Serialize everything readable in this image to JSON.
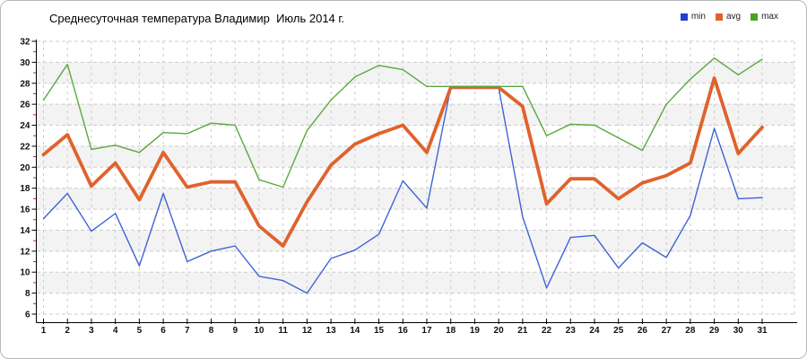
{
  "chart_data": {
    "type": "line",
    "title": "Среднесуточная температура Владимир  Июль 2014 г.",
    "xlabel": "",
    "ylabel": "",
    "x": [
      1,
      2,
      3,
      4,
      5,
      6,
      7,
      8,
      9,
      10,
      11,
      12,
      13,
      14,
      15,
      16,
      17,
      18,
      19,
      20,
      21,
      22,
      23,
      24,
      25,
      26,
      27,
      28,
      29,
      30,
      31
    ],
    "series": [
      {
        "name": "min",
        "color": "#3f63d6",
        "swatch_color": "#2040cf",
        "line_width": 1.4,
        "values": [
          15.1,
          17.5,
          13.9,
          15.6,
          10.6,
          17.5,
          11.0,
          12.0,
          12.5,
          9.6,
          9.2,
          8.0,
          11.3,
          12.1,
          13.6,
          18.7,
          16.1,
          27.6,
          27.6,
          27.6,
          15.3,
          8.5,
          13.3,
          13.5,
          10.4,
          12.8,
          11.4,
          15.4,
          23.7,
          17.0,
          17.1
        ]
      },
      {
        "name": "avg",
        "color": "#e0622d",
        "swatch_color": "#e0622d",
        "line_width": 3.8,
        "values": [
          21.2,
          23.1,
          18.2,
          20.4,
          16.9,
          21.4,
          18.1,
          18.6,
          18.6,
          14.4,
          12.5,
          16.7,
          20.2,
          22.2,
          23.2,
          24.0,
          21.4,
          27.6,
          27.6,
          27.6,
          25.8,
          16.5,
          18.9,
          18.9,
          17.0,
          18.5,
          19.2,
          20.4,
          28.5,
          21.3,
          23.8
        ]
      },
      {
        "name": "max",
        "color": "#5aa83e",
        "swatch_color": "#49a325",
        "line_width": 1.4,
        "values": [
          26.4,
          29.8,
          21.7,
          22.1,
          21.4,
          23.3,
          23.2,
          24.2,
          24.0,
          18.8,
          18.1,
          23.5,
          26.4,
          28.6,
          29.7,
          29.3,
          27.7,
          27.7,
          27.7,
          27.7,
          27.7,
          23.0,
          24.1,
          24.0,
          22.8,
          21.6,
          26.0,
          28.4,
          30.4,
          28.8,
          30.3
        ]
      }
    ],
    "ylim": [
      6,
      32
    ],
    "ytick_step": 2,
    "xticks": [
      1,
      2,
      3,
      4,
      5,
      6,
      7,
      8,
      9,
      10,
      11,
      12,
      13,
      14,
      15,
      16,
      17,
      18,
      19,
      20,
      21,
      22,
      23,
      24,
      25,
      26,
      27,
      28,
      29,
      30,
      31
    ],
    "grid": "dashed",
    "legend_position": "top-right",
    "colors": {
      "grid_line": "#cccccc",
      "band_fill": "#f3f3f3",
      "axis_line": "#000000",
      "major_tick": "#000000",
      "minor_tick": "#cc2222",
      "tick_label": "#111111",
      "title_text": "#000000"
    }
  }
}
